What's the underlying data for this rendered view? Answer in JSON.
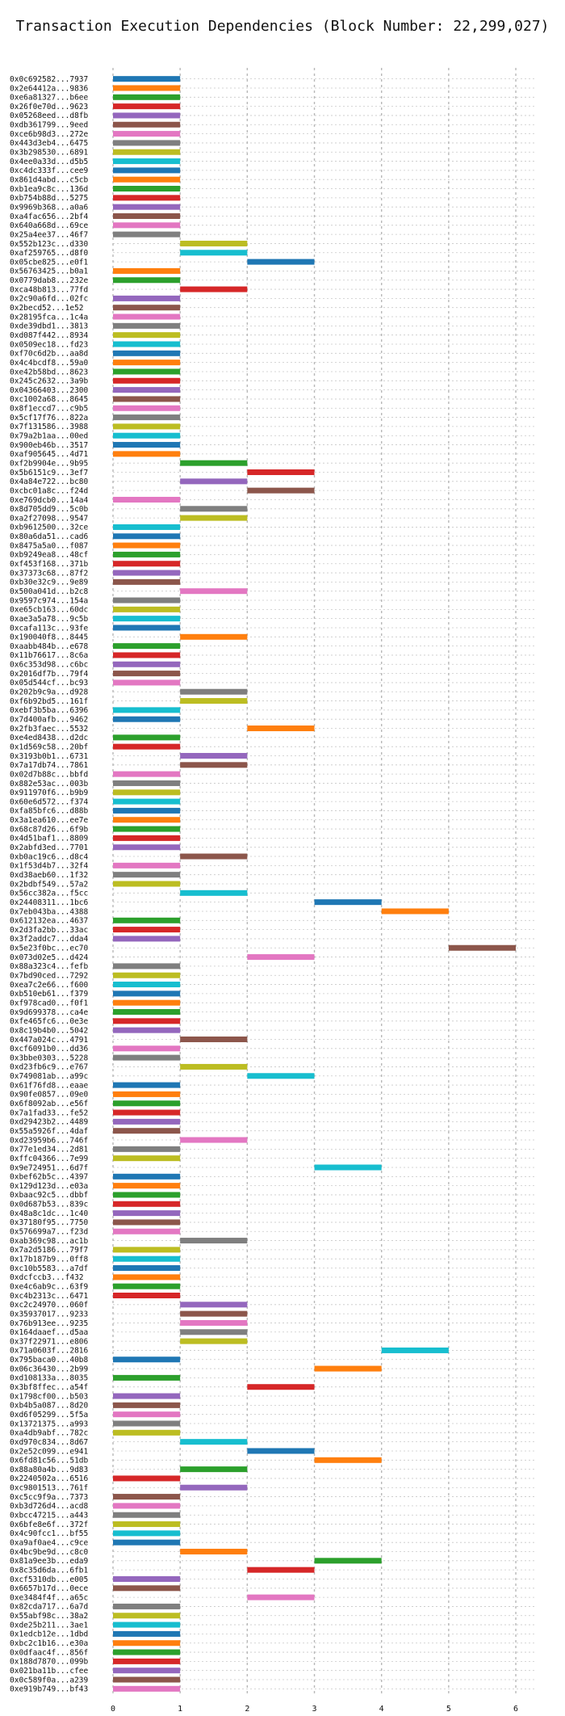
{
  "chart_data": {
    "type": "bar",
    "orientation": "horizontal",
    "title": "Transaction Execution Dependencies (Block Number: 22,299,027)",
    "xlabel": "",
    "ylabel": "",
    "xlim": [
      0,
      6.3
    ],
    "xticks": [
      0,
      1,
      2,
      3,
      4,
      5,
      6
    ],
    "grid": true,
    "legend": "none",
    "palette": [
      "#1f77b4",
      "#ff7f0e",
      "#2ca02c",
      "#d62728",
      "#9467bd",
      "#8c564b",
      "#e377c2",
      "#7f7f7f",
      "#bcbd22",
      "#17becf"
    ],
    "transactions": [
      {
        "hash": "0x0c692582...7937",
        "start": 0,
        "end": 1
      },
      {
        "hash": "0x2e64412a...9836",
        "start": 0,
        "end": 1
      },
      {
        "hash": "0xe6a81327...b6ee",
        "start": 0,
        "end": 1
      },
      {
        "hash": "0x26f0e70d...9623",
        "start": 0,
        "end": 1
      },
      {
        "hash": "0x05268eed...d8fb",
        "start": 0,
        "end": 1
      },
      {
        "hash": "0xdb361799...9eed",
        "start": 0,
        "end": 1
      },
      {
        "hash": "0xce6b98d3...272e",
        "start": 0,
        "end": 1
      },
      {
        "hash": "0x443d3eb4...6475",
        "start": 0,
        "end": 1
      },
      {
        "hash": "0x3b298530...6891",
        "start": 0,
        "end": 1
      },
      {
        "hash": "0x4ee0a33d...d5b5",
        "start": 0,
        "end": 1
      },
      {
        "hash": "0xc4dc333f...cee9",
        "start": 0,
        "end": 1
      },
      {
        "hash": "0x861d4abd...c5cb",
        "start": 0,
        "end": 1
      },
      {
        "hash": "0xb1ea9c8c...136d",
        "start": 0,
        "end": 1
      },
      {
        "hash": "0xb754b88d...5275",
        "start": 0,
        "end": 1
      },
      {
        "hash": "0x9969b368...a0a6",
        "start": 0,
        "end": 1
      },
      {
        "hash": "0xa4fac656...2bf4",
        "start": 0,
        "end": 1
      },
      {
        "hash": "0x640a668d...69ce",
        "start": 0,
        "end": 1
      },
      {
        "hash": "0x25a4ee37...46f7",
        "start": 0,
        "end": 1
      },
      {
        "hash": "0x552b123c...d330",
        "start": 1,
        "end": 2
      },
      {
        "hash": "0xaf259765...d8f0",
        "start": 1,
        "end": 2
      },
      {
        "hash": "0x05cbe825...e0f1",
        "start": 2,
        "end": 3
      },
      {
        "hash": "0x56763425...b0a1",
        "start": 0,
        "end": 1
      },
      {
        "hash": "0x0779dab8...232e",
        "start": 0,
        "end": 1
      },
      {
        "hash": "0xca48b813...77fd",
        "start": 1,
        "end": 2
      },
      {
        "hash": "0x2c90a6fd...02fc",
        "start": 0,
        "end": 1
      },
      {
        "hash": "0x2becd52...1e52",
        "start": 0,
        "end": 1
      },
      {
        "hash": "0x28195fca...1c4a",
        "start": 0,
        "end": 1
      },
      {
        "hash": "0xde39dbd1...3813",
        "start": 0,
        "end": 1
      },
      {
        "hash": "0xd087f442...8934",
        "start": 0,
        "end": 1
      },
      {
        "hash": "0x0509ec18...fd23",
        "start": 0,
        "end": 1
      },
      {
        "hash": "0xf70c6d2b...aa8d",
        "start": 0,
        "end": 1
      },
      {
        "hash": "0x4c4bcdf8...59a0",
        "start": 0,
        "end": 1
      },
      {
        "hash": "0xe42b58bd...8623",
        "start": 0,
        "end": 1
      },
      {
        "hash": "0x245c2632...3a9b",
        "start": 0,
        "end": 1
      },
      {
        "hash": "0x04366403...2300",
        "start": 0,
        "end": 1
      },
      {
        "hash": "0xc1002a68...8645",
        "start": 0,
        "end": 1
      },
      {
        "hash": "0x8f1eccd7...c9b5",
        "start": 0,
        "end": 1
      },
      {
        "hash": "0x5cf17f76...822a",
        "start": 0,
        "end": 1
      },
      {
        "hash": "0x7f131586...3988",
        "start": 0,
        "end": 1
      },
      {
        "hash": "0x79a2b1aa...00ed",
        "start": 0,
        "end": 1
      },
      {
        "hash": "0x900eb46b...3517",
        "start": 0,
        "end": 1
      },
      {
        "hash": "0xaf905645...4d71",
        "start": 0,
        "end": 1
      },
      {
        "hash": "0xf2b9904e...9b95",
        "start": 1,
        "end": 2
      },
      {
        "hash": "0x5b6151c9...3ef7",
        "start": 2,
        "end": 3
      },
      {
        "hash": "0x4a84e722...bc80",
        "start": 1,
        "end": 2
      },
      {
        "hash": "0xcbc01a8c...f24d",
        "start": 2,
        "end": 3
      },
      {
        "hash": "0xe769dcb0...14a4",
        "start": 0,
        "end": 1
      },
      {
        "hash": "0x8d705dd9...5c0b",
        "start": 1,
        "end": 2
      },
      {
        "hash": "0xa2f27098...9547",
        "start": 1,
        "end": 2
      },
      {
        "hash": "0xb9612500...32ce",
        "start": 0,
        "end": 1
      },
      {
        "hash": "0x80a6da51...cad6",
        "start": 0,
        "end": 1
      },
      {
        "hash": "0x8475a5a0...f087",
        "start": 0,
        "end": 1
      },
      {
        "hash": "0xb9249ea8...48cf",
        "start": 0,
        "end": 1
      },
      {
        "hash": "0xf453f168...371b",
        "start": 0,
        "end": 1
      },
      {
        "hash": "0x37373c68...87f2",
        "start": 0,
        "end": 1
      },
      {
        "hash": "0xb30e32c9...9e89",
        "start": 0,
        "end": 1
      },
      {
        "hash": "0x500a041d...b2c8",
        "start": 1,
        "end": 2
      },
      {
        "hash": "0x9597c974...154a",
        "start": 0,
        "end": 1
      },
      {
        "hash": "0xe65cb163...60dc",
        "start": 0,
        "end": 1
      },
      {
        "hash": "0xae3a5a78...9c5b",
        "start": 0,
        "end": 1
      },
      {
        "hash": "0xcafa113c...93fe",
        "start": 0,
        "end": 1
      },
      {
        "hash": "0x190040f8...8445",
        "start": 1,
        "end": 2
      },
      {
        "hash": "0xaabb484b...e678",
        "start": 0,
        "end": 1
      },
      {
        "hash": "0x11b76617...8c6a",
        "start": 0,
        "end": 1
      },
      {
        "hash": "0x6c353d98...c6bc",
        "start": 0,
        "end": 1
      },
      {
        "hash": "0x2016df7b...79f4",
        "start": 0,
        "end": 1
      },
      {
        "hash": "0x05d544cf...bc93",
        "start": 0,
        "end": 1
      },
      {
        "hash": "0x202b9c9a...d928",
        "start": 1,
        "end": 2
      },
      {
        "hash": "0xf6b92bd5...161f",
        "start": 1,
        "end": 2
      },
      {
        "hash": "0xebf3b5ba...6396",
        "start": 0,
        "end": 1
      },
      {
        "hash": "0x7d400afb...9462",
        "start": 0,
        "end": 1
      },
      {
        "hash": "0x2fb3faec...5532",
        "start": 2,
        "end": 3
      },
      {
        "hash": "0xe4ed8438...d2dc",
        "start": 0,
        "end": 1
      },
      {
        "hash": "0x1d569c58...20bf",
        "start": 0,
        "end": 1
      },
      {
        "hash": "0x3193b0b1...6731",
        "start": 1,
        "end": 2
      },
      {
        "hash": "0x7a17db74...7861",
        "start": 1,
        "end": 2
      },
      {
        "hash": "0x02d7b88c...bbfd",
        "start": 0,
        "end": 1
      },
      {
        "hash": "0x882e53ac...003b",
        "start": 0,
        "end": 1
      },
      {
        "hash": "0x911970f6...b9b9",
        "start": 0,
        "end": 1
      },
      {
        "hash": "0x60e6d572...f374",
        "start": 0,
        "end": 1
      },
      {
        "hash": "0xfa85bfc6...d88b",
        "start": 0,
        "end": 1
      },
      {
        "hash": "0x3a1ea610...ee7e",
        "start": 0,
        "end": 1
      },
      {
        "hash": "0x68c87d26...6f9b",
        "start": 0,
        "end": 1
      },
      {
        "hash": "0x4d51baf1...8809",
        "start": 0,
        "end": 1
      },
      {
        "hash": "0x2abfd3ed...7701",
        "start": 0,
        "end": 1
      },
      {
        "hash": "0xb0ac19c6...d8c4",
        "start": 1,
        "end": 2
      },
      {
        "hash": "0x1f53d4b7...32f4",
        "start": 0,
        "end": 1
      },
      {
        "hash": "0xd38aeb60...1f32",
        "start": 0,
        "end": 1
      },
      {
        "hash": "0x2bdbf549...57a2",
        "start": 0,
        "end": 1
      },
      {
        "hash": "0x56cc382a...f5cc",
        "start": 1,
        "end": 2
      },
      {
        "hash": "0x24408311...1bc6",
        "start": 3,
        "end": 4
      },
      {
        "hash": "0x7eb043ba...4388",
        "start": 4,
        "end": 5
      },
      {
        "hash": "0x612132ea...4637",
        "start": 0,
        "end": 1
      },
      {
        "hash": "0x2d3fa2bb...33ac",
        "start": 0,
        "end": 1
      },
      {
        "hash": "0x3f2addc7...dda4",
        "start": 0,
        "end": 1
      },
      {
        "hash": "0x5e23f0bc...ec70",
        "start": 5,
        "end": 6
      },
      {
        "hash": "0x073d02e5...d424",
        "start": 2,
        "end": 3
      },
      {
        "hash": "0x88a323c4...fefb",
        "start": 0,
        "end": 1
      },
      {
        "hash": "0x7bd90ced...7292",
        "start": 0,
        "end": 1
      },
      {
        "hash": "0xea7c2e66...f600",
        "start": 0,
        "end": 1
      },
      {
        "hash": "0xb510eb61...f379",
        "start": 0,
        "end": 1
      },
      {
        "hash": "0xf978cad0...f0f1",
        "start": 0,
        "end": 1
      },
      {
        "hash": "0x9d699378...ca4e",
        "start": 0,
        "end": 1
      },
      {
        "hash": "0xfe465fc6...0e3e",
        "start": 0,
        "end": 1
      },
      {
        "hash": "0x8c19b4b0...5042",
        "start": 0,
        "end": 1
      },
      {
        "hash": "0x447a024c...4791",
        "start": 1,
        "end": 2
      },
      {
        "hash": "0xcf6091b0...dd36",
        "start": 0,
        "end": 1
      },
      {
        "hash": "0x3bbe0303...5228",
        "start": 0,
        "end": 1
      },
      {
        "hash": "0xd23fb6c9...e767",
        "start": 1,
        "end": 2
      },
      {
        "hash": "0x749081ab...a99c",
        "start": 2,
        "end": 3
      },
      {
        "hash": "0x61f76fd8...eaae",
        "start": 0,
        "end": 1
      },
      {
        "hash": "0x90fe0857...09e0",
        "start": 0,
        "end": 1
      },
      {
        "hash": "0x6f8092ab...e56f",
        "start": 0,
        "end": 1
      },
      {
        "hash": "0x7a1fad33...fe52",
        "start": 0,
        "end": 1
      },
      {
        "hash": "0xd29423b2...4489",
        "start": 0,
        "end": 1
      },
      {
        "hash": "0x55a5926f...4daf",
        "start": 0,
        "end": 1
      },
      {
        "hash": "0xd23959b6...746f",
        "start": 1,
        "end": 2
      },
      {
        "hash": "0x77e1ed34...2d81",
        "start": 0,
        "end": 1
      },
      {
        "hash": "0xffc04366...7e99",
        "start": 0,
        "end": 1
      },
      {
        "hash": "0x9e724951...6d7f",
        "start": 3,
        "end": 4
      },
      {
        "hash": "0xbef62b5c...4397",
        "start": 0,
        "end": 1
      },
      {
        "hash": "0x129d123d...e03a",
        "start": 0,
        "end": 1
      },
      {
        "hash": "0xbaac92c5...dbbf",
        "start": 0,
        "end": 1
      },
      {
        "hash": "0x0d687b53...839c",
        "start": 0,
        "end": 1
      },
      {
        "hash": "0x48a8c1dc...1c40",
        "start": 0,
        "end": 1
      },
      {
        "hash": "0x37180f95...7750",
        "start": 0,
        "end": 1
      },
      {
        "hash": "0x576699a7...f23d",
        "start": 0,
        "end": 1
      },
      {
        "hash": "0xab369c98...ac1b",
        "start": 1,
        "end": 2
      },
      {
        "hash": "0x7a2d5186...79f7",
        "start": 0,
        "end": 1
      },
      {
        "hash": "0x17b187b9...0ff8",
        "start": 0,
        "end": 1
      },
      {
        "hash": "0xc10b5583...a7df",
        "start": 0,
        "end": 1
      },
      {
        "hash": "0xdcfccb3...f432",
        "start": 0,
        "end": 1
      },
      {
        "hash": "0xe4c6ab9c...63f9",
        "start": 0,
        "end": 1
      },
      {
        "hash": "0xc4b2313c...6471",
        "start": 0,
        "end": 1
      },
      {
        "hash": "0xc2c24970...060f",
        "start": 1,
        "end": 2
      },
      {
        "hash": "0x35937017...9233",
        "start": 1,
        "end": 2
      },
      {
        "hash": "0x76b913ee...9235",
        "start": 1,
        "end": 2
      },
      {
        "hash": "0x164daaef...d5aa",
        "start": 1,
        "end": 2
      },
      {
        "hash": "0x37f22971...e806",
        "start": 1,
        "end": 2
      },
      {
        "hash": "0x71a0603f...2816",
        "start": 4,
        "end": 5
      },
      {
        "hash": "0x795baca0...40b8",
        "start": 0,
        "end": 1
      },
      {
        "hash": "0x06c36430...2b99",
        "start": 3,
        "end": 4
      },
      {
        "hash": "0xd108133a...8035",
        "start": 0,
        "end": 1
      },
      {
        "hash": "0x3bf8ffec...a54f",
        "start": 2,
        "end": 3
      },
      {
        "hash": "0x1798cf00...b503",
        "start": 0,
        "end": 1
      },
      {
        "hash": "0xb4b5a087...8d20",
        "start": 0,
        "end": 1
      },
      {
        "hash": "0xd6f05299...5f5a",
        "start": 0,
        "end": 1
      },
      {
        "hash": "0x13721375...a993",
        "start": 0,
        "end": 1
      },
      {
        "hash": "0xa4db9abf...782c",
        "start": 0,
        "end": 1
      },
      {
        "hash": "0xd970c834...8d67",
        "start": 1,
        "end": 2
      },
      {
        "hash": "0x2e52c099...e941",
        "start": 2,
        "end": 3
      },
      {
        "hash": "0x6fd81c56...51db",
        "start": 3,
        "end": 4
      },
      {
        "hash": "0x88a80a4b...9d83",
        "start": 1,
        "end": 2
      },
      {
        "hash": "0x2240502a...6516",
        "start": 0,
        "end": 1
      },
      {
        "hash": "0xc9801513...761f",
        "start": 1,
        "end": 2
      },
      {
        "hash": "0xc5cc9f9a...7373",
        "start": 0,
        "end": 1
      },
      {
        "hash": "0xb3d726d4...acd8",
        "start": 0,
        "end": 1
      },
      {
        "hash": "0xbcc47215...a443",
        "start": 0,
        "end": 1
      },
      {
        "hash": "0x6bfe8e6f...372f",
        "start": 0,
        "end": 1
      },
      {
        "hash": "0x4c90fcc1...bf55",
        "start": 0,
        "end": 1
      },
      {
        "hash": "0xa9af0ae4...c9ce",
        "start": 0,
        "end": 1
      },
      {
        "hash": "0x4bc9be9d...c8c0",
        "start": 1,
        "end": 2
      },
      {
        "hash": "0x81a9ee3b...eda9",
        "start": 3,
        "end": 4
      },
      {
        "hash": "0x8c35d6da...6fb1",
        "start": 2,
        "end": 3
      },
      {
        "hash": "0xcf5310db...e005",
        "start": 0,
        "end": 1
      },
      {
        "hash": "0x6657b17d...0ece",
        "start": 0,
        "end": 1
      },
      {
        "hash": "0xe3484f4f...a65c",
        "start": 2,
        "end": 3
      },
      {
        "hash": "0x82cda717...6a7d",
        "start": 0,
        "end": 1
      },
      {
        "hash": "0x55abf98c...38a2",
        "start": 0,
        "end": 1
      },
      {
        "hash": "0xde25b211...3ae1",
        "start": 0,
        "end": 1
      },
      {
        "hash": "0x1edcb12e...1dbd",
        "start": 0,
        "end": 1
      },
      {
        "hash": "0xbc2c1b16...e30a",
        "start": 0,
        "end": 1
      },
      {
        "hash": "0x0dfaac4f...856f",
        "start": 0,
        "end": 1
      },
      {
        "hash": "0x188d7870...099b",
        "start": 0,
        "end": 1
      },
      {
        "hash": "0x021ba11b...cfee",
        "start": 0,
        "end": 1
      },
      {
        "hash": "0x0c589f0a...a239",
        "start": 0,
        "end": 1
      },
      {
        "hash": "0xe919b749...bf43",
        "start": 0,
        "end": 1
      }
    ]
  }
}
